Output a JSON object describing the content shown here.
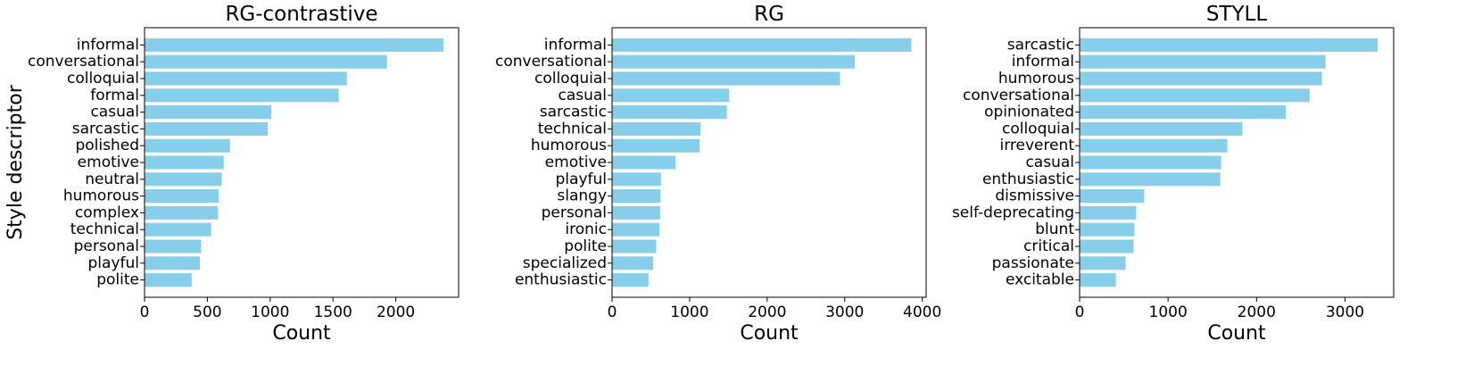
{
  "chart_data": [
    {
      "type": "bar",
      "orientation": "horizontal",
      "title": "RG-contrastive",
      "xlabel": "Count",
      "ylabel": "Style descriptor",
      "xlim": [
        0,
        2500
      ],
      "xticks": [
        0,
        500,
        1000,
        1500,
        2000
      ],
      "categories": [
        "informal",
        "conversational",
        "colloquial",
        "formal",
        "casual",
        "sarcastic",
        "polished",
        "emotive",
        "neutral",
        "humorous",
        "complex",
        "technical",
        "personal",
        "playful",
        "polite"
      ],
      "values": [
        2380,
        1930,
        1610,
        1545,
        1010,
        980,
        680,
        630,
        615,
        590,
        585,
        530,
        450,
        440,
        375
      ],
      "color": "#87CEEB"
    },
    {
      "type": "bar",
      "orientation": "horizontal",
      "title": "RG",
      "xlabel": "Count",
      "ylabel": "",
      "xlim": [
        0,
        4050
      ],
      "xticks": [
        0,
        1000,
        2000,
        3000,
        4000
      ],
      "categories": [
        "informal",
        "conversational",
        "colloquial",
        "casual",
        "sarcastic",
        "technical",
        "humorous",
        "emotive",
        "playful",
        "slangy",
        "personal",
        "ironic",
        "polite",
        "specialized",
        "enthusiastic"
      ],
      "values": [
        3860,
        3130,
        2940,
        1510,
        1480,
        1140,
        1130,
        820,
        630,
        625,
        620,
        610,
        570,
        530,
        470
      ],
      "color": "#87CEEB"
    },
    {
      "type": "bar",
      "orientation": "horizontal",
      "title": "STYLL",
      "xlabel": "Count",
      "ylabel": "",
      "xlim": [
        0,
        3550
      ],
      "xticks": [
        0,
        1000,
        2000,
        3000
      ],
      "categories": [
        "sarcastic",
        "informal",
        "humorous",
        "conversational",
        "opinionated",
        "colloquial",
        "irreverent",
        "casual",
        "enthusiastic",
        "dismissive",
        "self-deprecating",
        "blunt",
        "critical",
        "passionate",
        "excitable"
      ],
      "values": [
        3370,
        2780,
        2740,
        2600,
        2330,
        1840,
        1670,
        1600,
        1590,
        730,
        640,
        620,
        610,
        520,
        410
      ],
      "color": "#87CEEB"
    }
  ]
}
